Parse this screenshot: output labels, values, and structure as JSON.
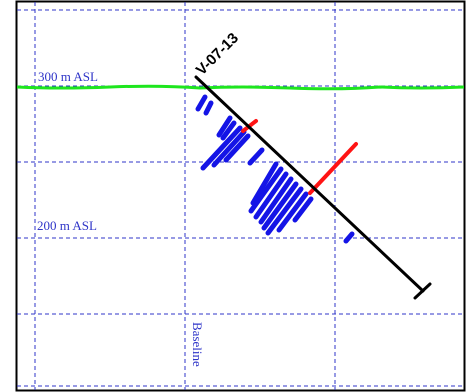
{
  "section": {
    "drillhole_id": "V-07-13",
    "elevation_labels": [
      "300 m ASL",
      "200 m ASL"
    ],
    "baseline_label": "Baseline"
  },
  "colors": {
    "frame": "#000000",
    "grid": "#2f35c8",
    "topography": "#1ee61e",
    "drill_trace": "#000000",
    "intercept_blue": "#1414e6",
    "intercept_red": "#ff1414"
  }
}
